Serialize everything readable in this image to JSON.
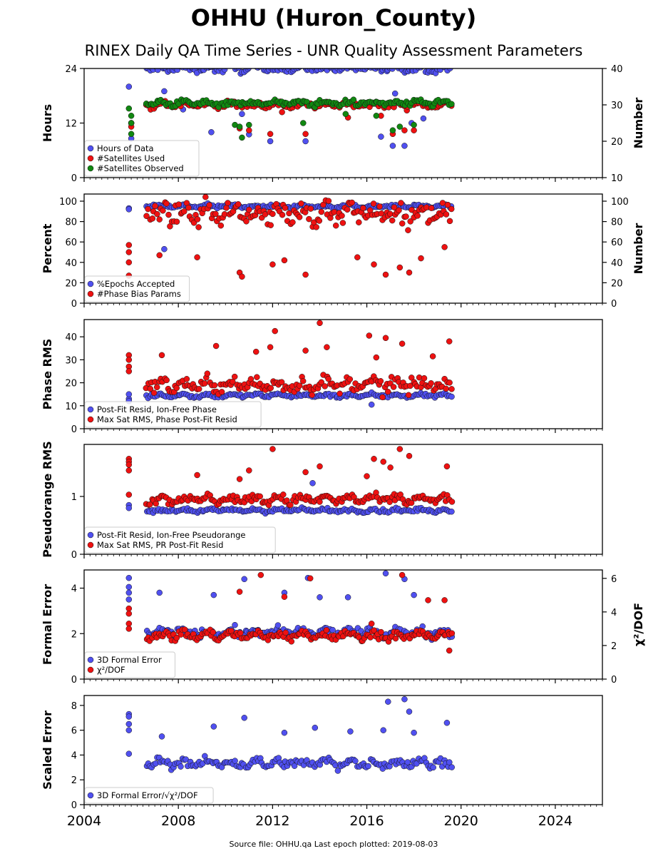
{
  "title": "OHHU (Huron_County)",
  "subtitle": "RINEX Daily QA Time Series - UNR Quality Assessment Parameters",
  "footer": "Source file: OHHU.qa Last epoch plotted: 2019-08-03",
  "colors": {
    "blue": "#5050f0",
    "red": "#ee1111",
    "green": "#118811"
  },
  "chart_data": [
    {
      "type": "scatter",
      "ylabel": "Hours",
      "ylabel_right": "Number",
      "ylim": [
        0,
        24
      ],
      "yticks": [
        0,
        12,
        24
      ],
      "ylim_right": [
        10,
        40
      ],
      "yticks_right": [
        10,
        20,
        30,
        40
      ],
      "xlim": [
        2004,
        2026
      ],
      "xticks": [
        2004,
        2008,
        2012,
        2016,
        2020,
        2024
      ],
      "legend_loc": "lower-left",
      "series": [
        {
          "name": "Hours of Data",
          "color": "blue",
          "axis": "left",
          "base": 24,
          "noise": 0.7,
          "x_range": [
            2005.9,
            2019.59
          ],
          "outliers": [
            [
              2005.9,
              20.0
            ],
            [
              2006.0,
              12.0
            ],
            [
              2006.0,
              8.6
            ],
            [
              2007.4,
              19.0
            ],
            [
              2008.2,
              15.0
            ],
            [
              2009.4,
              10.0
            ],
            [
              2010.3,
              16.5
            ],
            [
              2010.7,
              14.0
            ],
            [
              2011.0,
              9.5
            ],
            [
              2011.9,
              8.0
            ],
            [
              2013.4,
              8.0
            ],
            [
              2015.3,
              16.5
            ],
            [
              2016.6,
              9.0
            ],
            [
              2017.1,
              7.0
            ],
            [
              2017.2,
              18.5
            ],
            [
              2017.6,
              7.0
            ],
            [
              2017.9,
              12.0
            ],
            [
              2018.4,
              13.0
            ]
          ]
        },
        {
          "name": "#Satellites Used",
          "color": "red",
          "axis": "right",
          "base": 30,
          "noise": 0.8,
          "x_range": [
            2005.9,
            2019.59
          ],
          "outliers": [
            [
              2006.0,
              25.0
            ],
            [
              2006.0,
              24.0
            ],
            [
              2010.6,
              23.5
            ],
            [
              2011.0,
              23.0
            ],
            [
              2011.9,
              22.0
            ],
            [
              2012.4,
              28.0
            ],
            [
              2013.4,
              22.0
            ],
            [
              2015.2,
              26.5
            ],
            [
              2016.6,
              27.0
            ],
            [
              2017.1,
              22.0
            ],
            [
              2017.6,
              23.0
            ],
            [
              2018.0,
              23.0
            ]
          ]
        },
        {
          "name": "#Satellites Observed",
          "color": "green",
          "axis": "right",
          "base": 30.5,
          "noise": 0.7,
          "x_range": [
            2005.9,
            2019.59
          ],
          "outliers": [
            [
              2005.9,
              29.0
            ],
            [
              2006.0,
              27.0
            ],
            [
              2006.0,
              25.0
            ],
            [
              2006.0,
              22.0
            ],
            [
              2010.4,
              24.5
            ],
            [
              2010.6,
              24.0
            ],
            [
              2010.7,
              21.0
            ],
            [
              2011.0,
              24.5
            ],
            [
              2013.3,
              25.0
            ],
            [
              2015.1,
              27.5
            ],
            [
              2016.4,
              27.0
            ],
            [
              2017.1,
              23.0
            ],
            [
              2017.4,
              24.0
            ],
            [
              2018.0,
              24.5
            ]
          ]
        }
      ]
    },
    {
      "type": "scatter",
      "ylabel": "Percent",
      "ylabel_right": "Number",
      "ylim": [
        0,
        107
      ],
      "yticks": [
        0,
        20,
        40,
        60,
        80,
        100
      ],
      "ylim_right": [
        0,
        107
      ],
      "yticks_right": [
        0,
        20,
        40,
        60,
        80,
        100
      ],
      "xlim": [
        2004,
        2026
      ],
      "xticks": [
        2004,
        2008,
        2012,
        2016,
        2020,
        2024
      ],
      "legend_loc": "lower-left",
      "series": [
        {
          "name": "%Epochs Accepted",
          "color": "blue",
          "axis": "left",
          "base": 95,
          "noise": 1.5,
          "x_range": [
            2005.9,
            2019.59
          ],
          "outliers": [
            [
              2005.9,
              93.0
            ],
            [
              2005.9,
              92.0
            ],
            [
              2007.4,
              53.0
            ]
          ]
        },
        {
          "name": "#Phase Bias Params",
          "color": "red",
          "axis": "right",
          "base": 88,
          "noise": 9,
          "x_range": [
            2005.9,
            2019.59
          ],
          "outliers": [
            [
              2005.9,
              57.0
            ],
            [
              2005.9,
              50.0
            ],
            [
              2005.9,
              40.0
            ],
            [
              2005.9,
              27.0
            ],
            [
              2007.2,
              47.0
            ],
            [
              2008.8,
              45.0
            ],
            [
              2010.6,
              30.0
            ],
            [
              2010.7,
              26.0
            ],
            [
              2012.0,
              38.0
            ],
            [
              2012.5,
              42.0
            ],
            [
              2013.4,
              28.0
            ],
            [
              2015.6,
              45.0
            ],
            [
              2016.3,
              38.0
            ],
            [
              2016.8,
              28.0
            ],
            [
              2017.4,
              35.0
            ],
            [
              2017.8,
              30.0
            ],
            [
              2018.3,
              44.0
            ],
            [
              2019.3,
              55.0
            ]
          ]
        }
      ]
    },
    {
      "type": "scatter",
      "ylabel": "Phase RMS",
      "ylim": [
        0,
        47.5
      ],
      "yticks": [
        0,
        10,
        20,
        30,
        40
      ],
      "xlim": [
        2004,
        2026
      ],
      "xticks": [
        2004,
        2008,
        2012,
        2016,
        2020,
        2024
      ],
      "legend_loc": "lower-left",
      "series": [
        {
          "name": "Post-Fit Resid, Ion-Free Phase",
          "color": "blue",
          "axis": "left",
          "base": 14.5,
          "noise": 0.8,
          "x_range": [
            2005.9,
            2019.59
          ],
          "outliers": [
            [
              2005.9,
              13.0
            ],
            [
              2005.9,
              12.0
            ],
            [
              2005.9,
              15.0
            ],
            [
              2016.2,
              10.5
            ]
          ]
        },
        {
          "name": "Max Sat RMS, Phase Post-Fit Resid",
          "color": "red",
          "axis": "left",
          "base": 19,
          "noise": 2.8,
          "x_range": [
            2005.9,
            2019.59
          ],
          "outliers": [
            [
              2005.9,
              32.0
            ],
            [
              2005.9,
              30.0
            ],
            [
              2005.9,
              27.0
            ],
            [
              2005.9,
              25.0
            ],
            [
              2007.3,
              32.0
            ],
            [
              2009.6,
              36.0
            ],
            [
              2011.3,
              33.5
            ],
            [
              2011.9,
              35.5
            ],
            [
              2012.1,
              42.5
            ],
            [
              2013.4,
              34.0
            ],
            [
              2014.0,
              46.0
            ],
            [
              2014.3,
              35.5
            ],
            [
              2016.1,
              40.5
            ],
            [
              2016.4,
              31.0
            ],
            [
              2016.8,
              39.5
            ],
            [
              2017.5,
              37.0
            ],
            [
              2018.8,
              31.5
            ],
            [
              2019.5,
              38.0
            ]
          ]
        }
      ]
    },
    {
      "type": "scatter",
      "ylabel": "Pseudorange RMS",
      "ylim": [
        0,
        1.9
      ],
      "yticks": [
        0,
        1
      ],
      "xlim": [
        2004,
        2026
      ],
      "xticks": [
        2004,
        2008,
        2012,
        2016,
        2020,
        2024
      ],
      "legend_loc": "lower-left",
      "series": [
        {
          "name": "Post-Fit Resid, Ion-Free Pseudorange",
          "color": "blue",
          "axis": "left",
          "base": 0.76,
          "noise": 0.03,
          "x_range": [
            2005.9,
            2019.59
          ],
          "outliers": [
            [
              2005.9,
              0.85
            ],
            [
              2005.9,
              0.8
            ],
            [
              2013.7,
              1.23
            ]
          ]
        },
        {
          "name": "Max Sat RMS, PR Post-Fit Resid",
          "color": "red",
          "axis": "left",
          "base": 0.95,
          "noise": 0.07,
          "x_range": [
            2005.9,
            2019.59
          ],
          "outliers": [
            [
              2005.9,
              1.65
            ],
            [
              2005.9,
              1.6
            ],
            [
              2005.9,
              1.55
            ],
            [
              2005.9,
              1.45
            ],
            [
              2005.9,
              1.03
            ],
            [
              2008.8,
              1.37
            ],
            [
              2010.6,
              1.3
            ],
            [
              2011.0,
              1.45
            ],
            [
              2012.0,
              1.82
            ],
            [
              2013.4,
              1.42
            ],
            [
              2014.0,
              1.52
            ],
            [
              2016.0,
              1.35
            ],
            [
              2016.3,
              1.65
            ],
            [
              2016.7,
              1.6
            ],
            [
              2017.0,
              1.5
            ],
            [
              2017.4,
              1.82
            ],
            [
              2017.8,
              1.7
            ],
            [
              2019.4,
              1.52
            ]
          ]
        }
      ]
    },
    {
      "type": "scatter",
      "ylabel": "Formal Error",
      "ylabel_right": "χ²/DOF",
      "ylim": [
        0,
        4.8
      ],
      "yticks": [
        0,
        2,
        4
      ],
      "ylim_right": [
        0,
        6.5
      ],
      "yticks_right": [
        0,
        2,
        4,
        6
      ],
      "xlim": [
        2004,
        2026
      ],
      "xticks": [
        2004,
        2008,
        2012,
        2016,
        2020,
        2024
      ],
      "legend_loc": "lower-left",
      "series": [
        {
          "name": "3D Formal Error",
          "color": "blue",
          "axis": "left",
          "base": 2.05,
          "noise": 0.18,
          "x_range": [
            2005.9,
            2019.59
          ],
          "outliers": [
            [
              2005.9,
              4.45
            ],
            [
              2005.9,
              4.05
            ],
            [
              2005.9,
              3.8
            ],
            [
              2005.9,
              3.5
            ],
            [
              2007.2,
              3.8
            ],
            [
              2009.5,
              3.7
            ],
            [
              2010.8,
              4.4
            ],
            [
              2012.5,
              3.8
            ],
            [
              2013.5,
              4.45
            ],
            [
              2014.0,
              3.6
            ],
            [
              2015.2,
              3.6
            ],
            [
              2016.8,
              4.65
            ],
            [
              2017.6,
              4.4
            ],
            [
              2018.0,
              3.7
            ]
          ]
        },
        {
          "name": "χ²/DOF",
          "color": "red",
          "axis": "right",
          "base": 2.6,
          "noise": 0.25,
          "x_range": [
            2005.9,
            2019.59
          ],
          "outliers": [
            [
              2005.9,
              4.2
            ],
            [
              2005.9,
              3.9
            ],
            [
              2005.9,
              3.3
            ],
            [
              2005.9,
              3.0
            ],
            [
              2010.6,
              5.2
            ],
            [
              2011.5,
              6.2
            ],
            [
              2012.5,
              4.9
            ],
            [
              2013.6,
              6.0
            ],
            [
              2016.2,
              3.3
            ],
            [
              2017.5,
              6.2
            ],
            [
              2018.6,
              4.7
            ],
            [
              2019.3,
              4.7
            ],
            [
              2019.5,
              1.7
            ]
          ]
        }
      ]
    },
    {
      "type": "scatter",
      "ylabel": "Scaled Error",
      "ylim": [
        0,
        8.8
      ],
      "yticks": [
        0,
        2,
        4,
        6,
        8
      ],
      "xlim": [
        2004,
        2026
      ],
      "xticks": [
        2004,
        2008,
        2012,
        2016,
        2020,
        2024
      ],
      "legend_loc": "lower-left",
      "series": [
        {
          "name": "3D Formal Error/√χ²/DOF",
          "color": "blue",
          "axis": "left",
          "base": 3.35,
          "noise": 0.35,
          "x_range": [
            2005.9,
            2019.59
          ],
          "outliers": [
            [
              2005.9,
              7.3
            ],
            [
              2005.9,
              7.1
            ],
            [
              2005.9,
              6.5
            ],
            [
              2005.9,
              6.0
            ],
            [
              2005.9,
              4.1
            ],
            [
              2007.3,
              5.5
            ],
            [
              2009.5,
              6.3
            ],
            [
              2010.8,
              7.0
            ],
            [
              2012.5,
              5.8
            ],
            [
              2013.8,
              6.2
            ],
            [
              2015.3,
              5.9
            ],
            [
              2016.7,
              6.0
            ],
            [
              2016.9,
              8.3
            ],
            [
              2017.6,
              8.5
            ],
            [
              2017.8,
              7.5
            ],
            [
              2018.0,
              5.8
            ],
            [
              2019.4,
              6.6
            ]
          ]
        }
      ]
    }
  ]
}
